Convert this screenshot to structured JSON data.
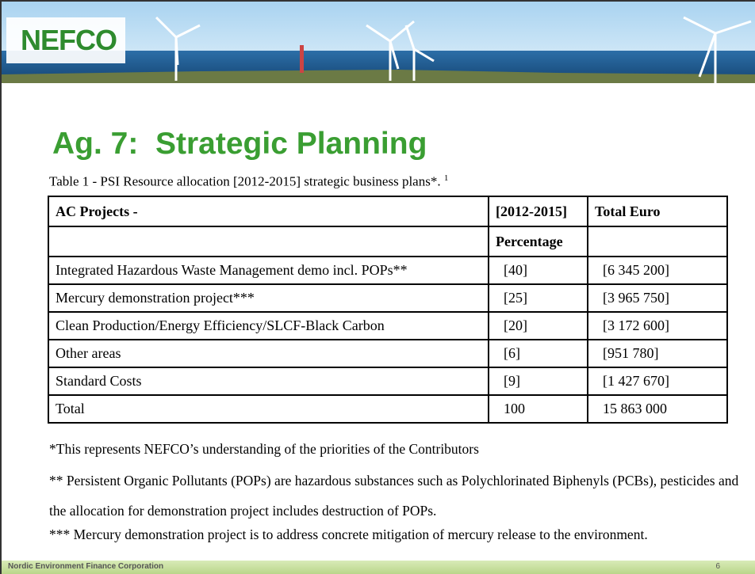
{
  "header": {
    "logo": "NEFCO"
  },
  "title": "Ag. 7:  Strategic Planning",
  "caption": {
    "text": "Table 1 - PSI Resource allocation [2012-2015] strategic business plans*.",
    "footnote_ref": "1"
  },
  "table": {
    "header": [
      "AC Projects -",
      "[2012-2015]",
      "Total Euro"
    ],
    "subheader": "Percentage",
    "rows": [
      [
        "Integrated Hazardous Waste Management demo incl. POPs**",
        "[40]",
        "[6 345 200]"
      ],
      [
        "Mercury demonstration project***",
        "[25]",
        "[3 965 750]"
      ],
      [
        "Clean Production/Energy Efficiency/SLCF-Black Carbon",
        "[20]",
        "[3 172 600]"
      ],
      [
        "Other areas",
        "[6]",
        "[951 780]"
      ],
      [
        "Standard Costs",
        "[9]",
        "[1 427 670]"
      ],
      [
        "Total",
        "100",
        "15 863 000"
      ]
    ]
  },
  "footnotes": [
    "*This represents NEFCO’s understanding of the priorities of the Contributors",
    "** Persistent Organic Pollutants (POPs) are hazardous substances such as Polychlorinated Biphenyls (PCBs), pesticides and the allocation for demonstration project includes destruction of POPs.",
    "*** Mercury demonstration project is to address concrete mitigation of mercury release to the environment."
  ],
  "footer": {
    "organization": "Nordic Environment Finance Corporation",
    "page": "6"
  }
}
